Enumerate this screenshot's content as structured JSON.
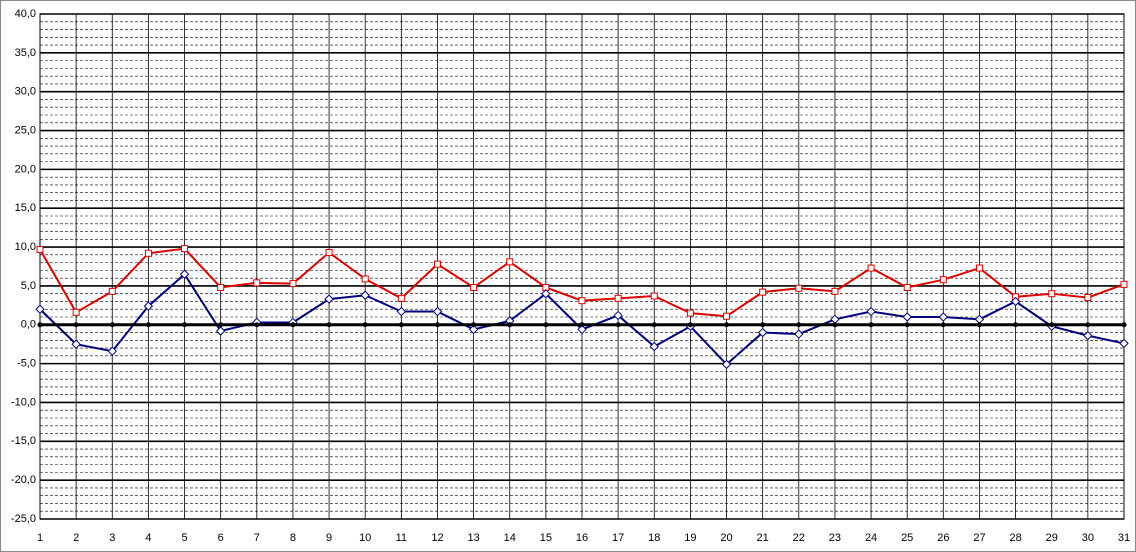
{
  "chart_data": {
    "type": "line",
    "categories": [
      "1",
      "2",
      "3",
      "4",
      "5",
      "6",
      "7",
      "8",
      "9",
      "10",
      "11",
      "12",
      "13",
      "14",
      "15",
      "16",
      "17",
      "18",
      "19",
      "20",
      "21",
      "22",
      "23",
      "24",
      "25",
      "26",
      "27",
      "28",
      "29",
      "30",
      "31"
    ],
    "series": [
      {
        "color": "#e00000",
        "marker": "square",
        "values": [
          9.7,
          1.6,
          4.3,
          9.2,
          9.8,
          4.8,
          5.4,
          5.3,
          9.3,
          5.9,
          3.4,
          7.8,
          4.8,
          8.1,
          4.8,
          3.1,
          3.4,
          3.7,
          1.5,
          1.1,
          4.2,
          4.7,
          4.3,
          7.3,
          4.8,
          5.8,
          7.3,
          3.6,
          4.0,
          3.5,
          5.2
        ]
      },
      {
        "color": "#000080",
        "marker": "diamond",
        "values": [
          2.0,
          -2.5,
          -3.4,
          2.4,
          6.5,
          -0.8,
          0.3,
          0.3,
          3.3,
          3.8,
          1.7,
          1.7,
          -0.6,
          0.5,
          4.0,
          -0.6,
          1.2,
          -2.8,
          -0.2,
          -5.1,
          -1.0,
          -1.2,
          0.7,
          1.7,
          1.0,
          1.0,
          0.7,
          3.0,
          -0.2,
          -1.4,
          -2.4
        ]
      },
      {
        "color": "#000000",
        "marker": "dot",
        "values": [
          0,
          0,
          0,
          0,
          0,
          0,
          0,
          0,
          0,
          0,
          0,
          0,
          0,
          0,
          0,
          0,
          0,
          0,
          0,
          0,
          0,
          0,
          0,
          0,
          0,
          0,
          0,
          0,
          0,
          0,
          0
        ]
      }
    ],
    "ylim": [
      -25,
      40
    ],
    "yticks": [
      {
        "value": -25,
        "label": "-25,0"
      },
      {
        "value": -20,
        "label": "-20,0"
      },
      {
        "value": -15,
        "label": "-15,0"
      },
      {
        "value": -10,
        "label": "-10,0"
      },
      {
        "value": -5,
        "label": "-5,0"
      },
      {
        "value": 0,
        "label": "0,0"
      },
      {
        "value": 5,
        "label": "5,0"
      },
      {
        "value": 10,
        "label": "10,0"
      },
      {
        "value": 15,
        "label": "15,0"
      },
      {
        "value": 20,
        "label": "20,0"
      },
      {
        "value": 25,
        "label": "25,0"
      },
      {
        "value": 30,
        "label": "30,0"
      },
      {
        "value": 35,
        "label": "35,0"
      },
      {
        "value": 40,
        "label": "40,0"
      }
    ],
    "grid": true,
    "minor_grid": true
  }
}
